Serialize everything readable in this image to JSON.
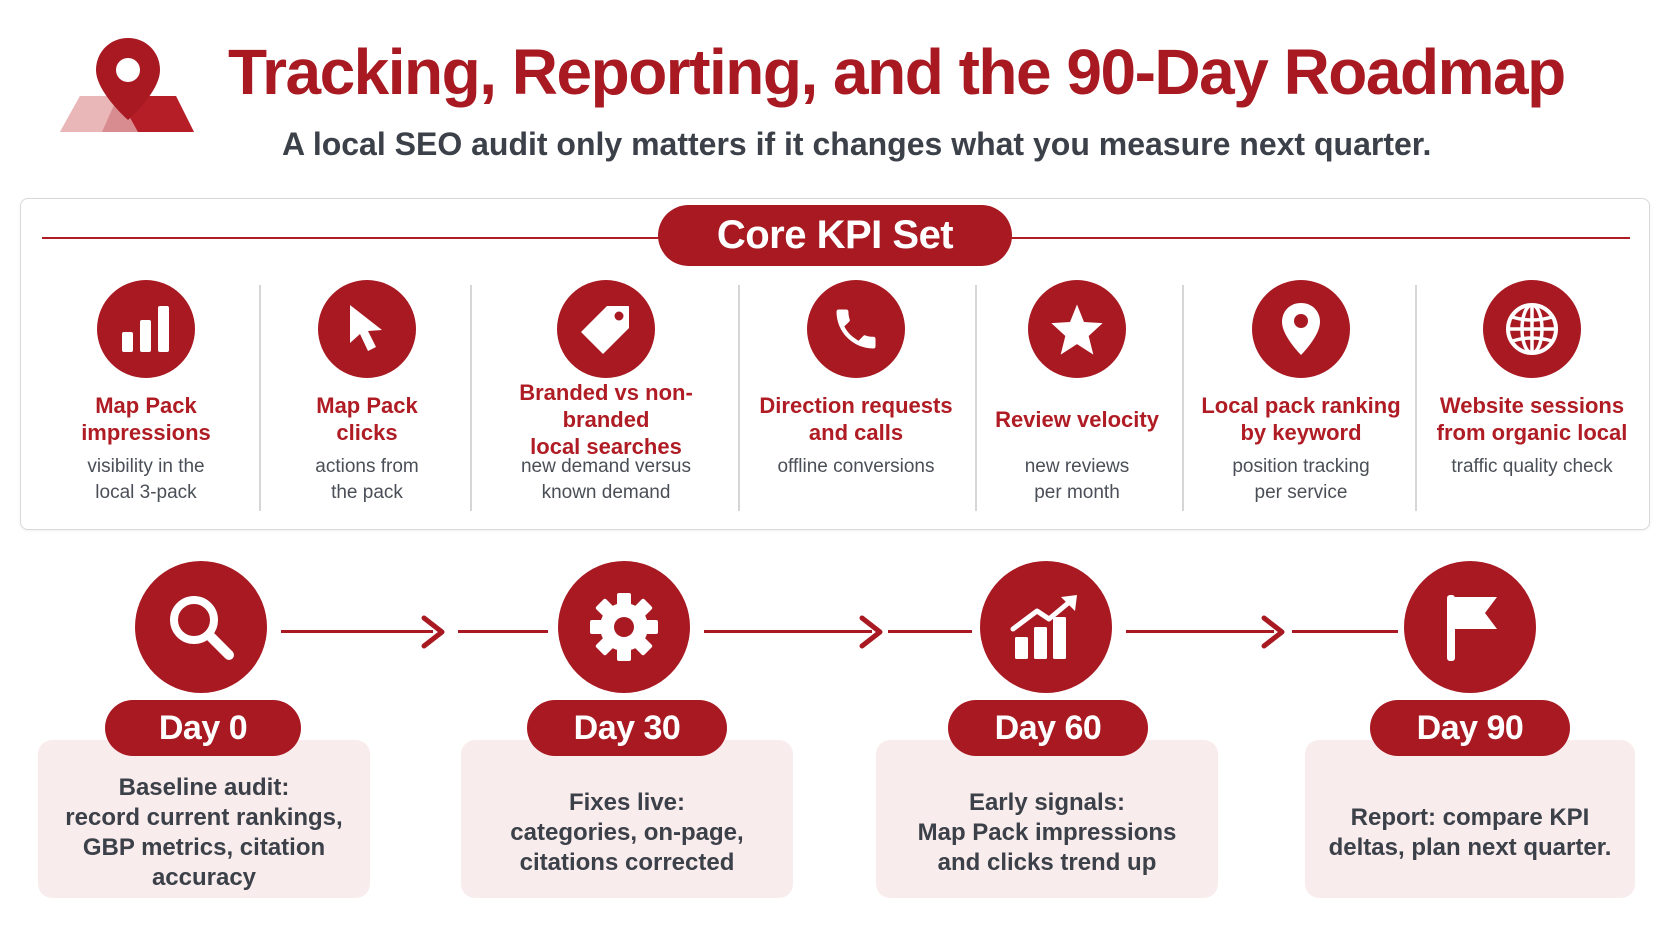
{
  "header": {
    "title": "Tracking, Reporting, and the 90-Day Roadmap",
    "subtitle": "A local SEO audit only matters if it changes what you measure next quarter.",
    "logo_icon": "map-pin-icon"
  },
  "colors": {
    "brand_red": "#a81922",
    "card_tint": "#f9ecec",
    "text_dark": "#3b4049"
  },
  "kpi_section": {
    "heading": "Core KPI Set",
    "items": [
      {
        "icon": "bar-chart-icon",
        "label": "Map Pack\nimpressions",
        "desc": "visibility in the\nlocal 3-pack"
      },
      {
        "icon": "cursor-icon",
        "label": "Map Pack\nclicks",
        "desc": "actions from\nthe pack"
      },
      {
        "icon": "tag-icon",
        "label": "Branded vs non-branded\nlocal searches",
        "desc": "new demand versus\nknown demand"
      },
      {
        "icon": "phone-icon",
        "label": "Direction requests\nand calls",
        "desc": "offline conversions"
      },
      {
        "icon": "star-icon",
        "label": "Review velocity",
        "desc": "new reviews\nper month"
      },
      {
        "icon": "location-pin-icon",
        "label": "Local pack ranking\nby keyword",
        "desc": "position tracking\nper service"
      },
      {
        "icon": "globe-icon",
        "label": "Website sessions\nfrom organic local",
        "desc": "traffic quality check"
      }
    ]
  },
  "roadmap": {
    "steps": [
      {
        "icon": "search-icon",
        "day": "Day 0",
        "text": "Baseline audit:\nrecord current rankings,\nGBP metrics, citation\naccuracy"
      },
      {
        "icon": "gear-icon",
        "day": "Day 30",
        "text": "Fixes live:\ncategories, on-page,\ncitations corrected"
      },
      {
        "icon": "trend-up-icon",
        "day": "Day 60",
        "text": "Early signals:\nMap Pack impressions\nand clicks trend up"
      },
      {
        "icon": "flag-icon",
        "day": "Day 90",
        "text": "Report: compare KPI\ndeltas, plan next quarter."
      }
    ]
  }
}
